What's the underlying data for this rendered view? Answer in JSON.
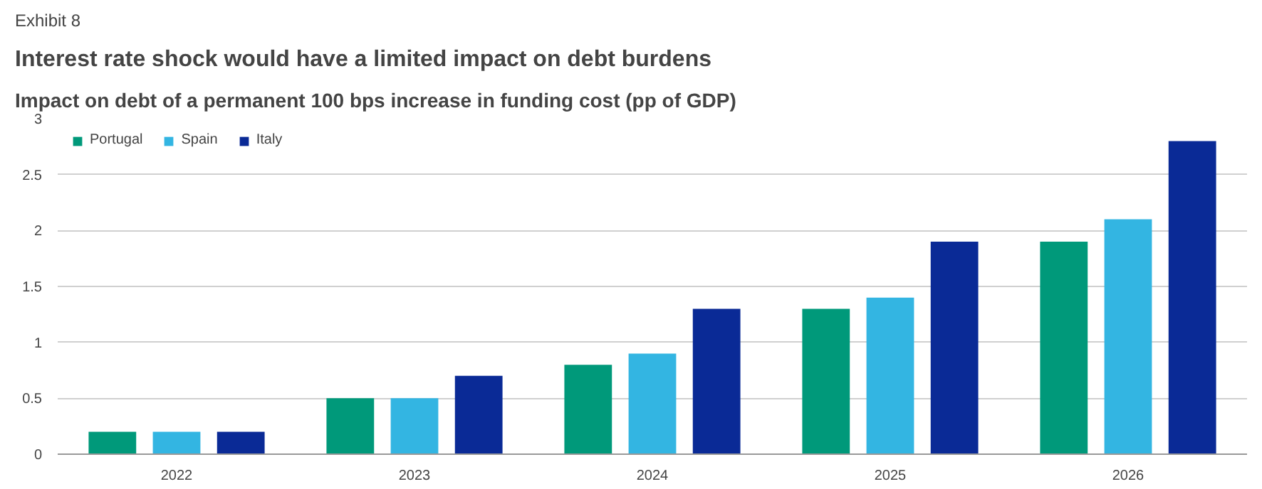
{
  "chart_data": {
    "type": "bar",
    "title": "Interest rate shock would have a limited impact on debt burdens",
    "subtitle": "Impact on debt of a permanent 100 bps increase in funding cost (pp of GDP)",
    "annotations": [
      "Exhibit 8"
    ],
    "categories": [
      "2022",
      "2023",
      "2024",
      "2025",
      "2026"
    ],
    "series": [
      {
        "name": "Portugal",
        "color": "#00997a",
        "values": [
          0.2,
          0.5,
          0.8,
          1.3,
          1.9
        ]
      },
      {
        "name": "Spain",
        "color": "#33b5e2",
        "values": [
          0.2,
          0.5,
          0.9,
          1.4,
          2.1
        ]
      },
      {
        "name": "Italy",
        "color": "#0a2a96",
        "values": [
          0.2,
          0.7,
          1.3,
          1.9,
          2.8
        ]
      }
    ],
    "ylim": [
      0,
      3
    ],
    "yticks": [
      0,
      0.5,
      1,
      1.5,
      2,
      2.5,
      3
    ],
    "grid": "y",
    "legend": "top left"
  }
}
